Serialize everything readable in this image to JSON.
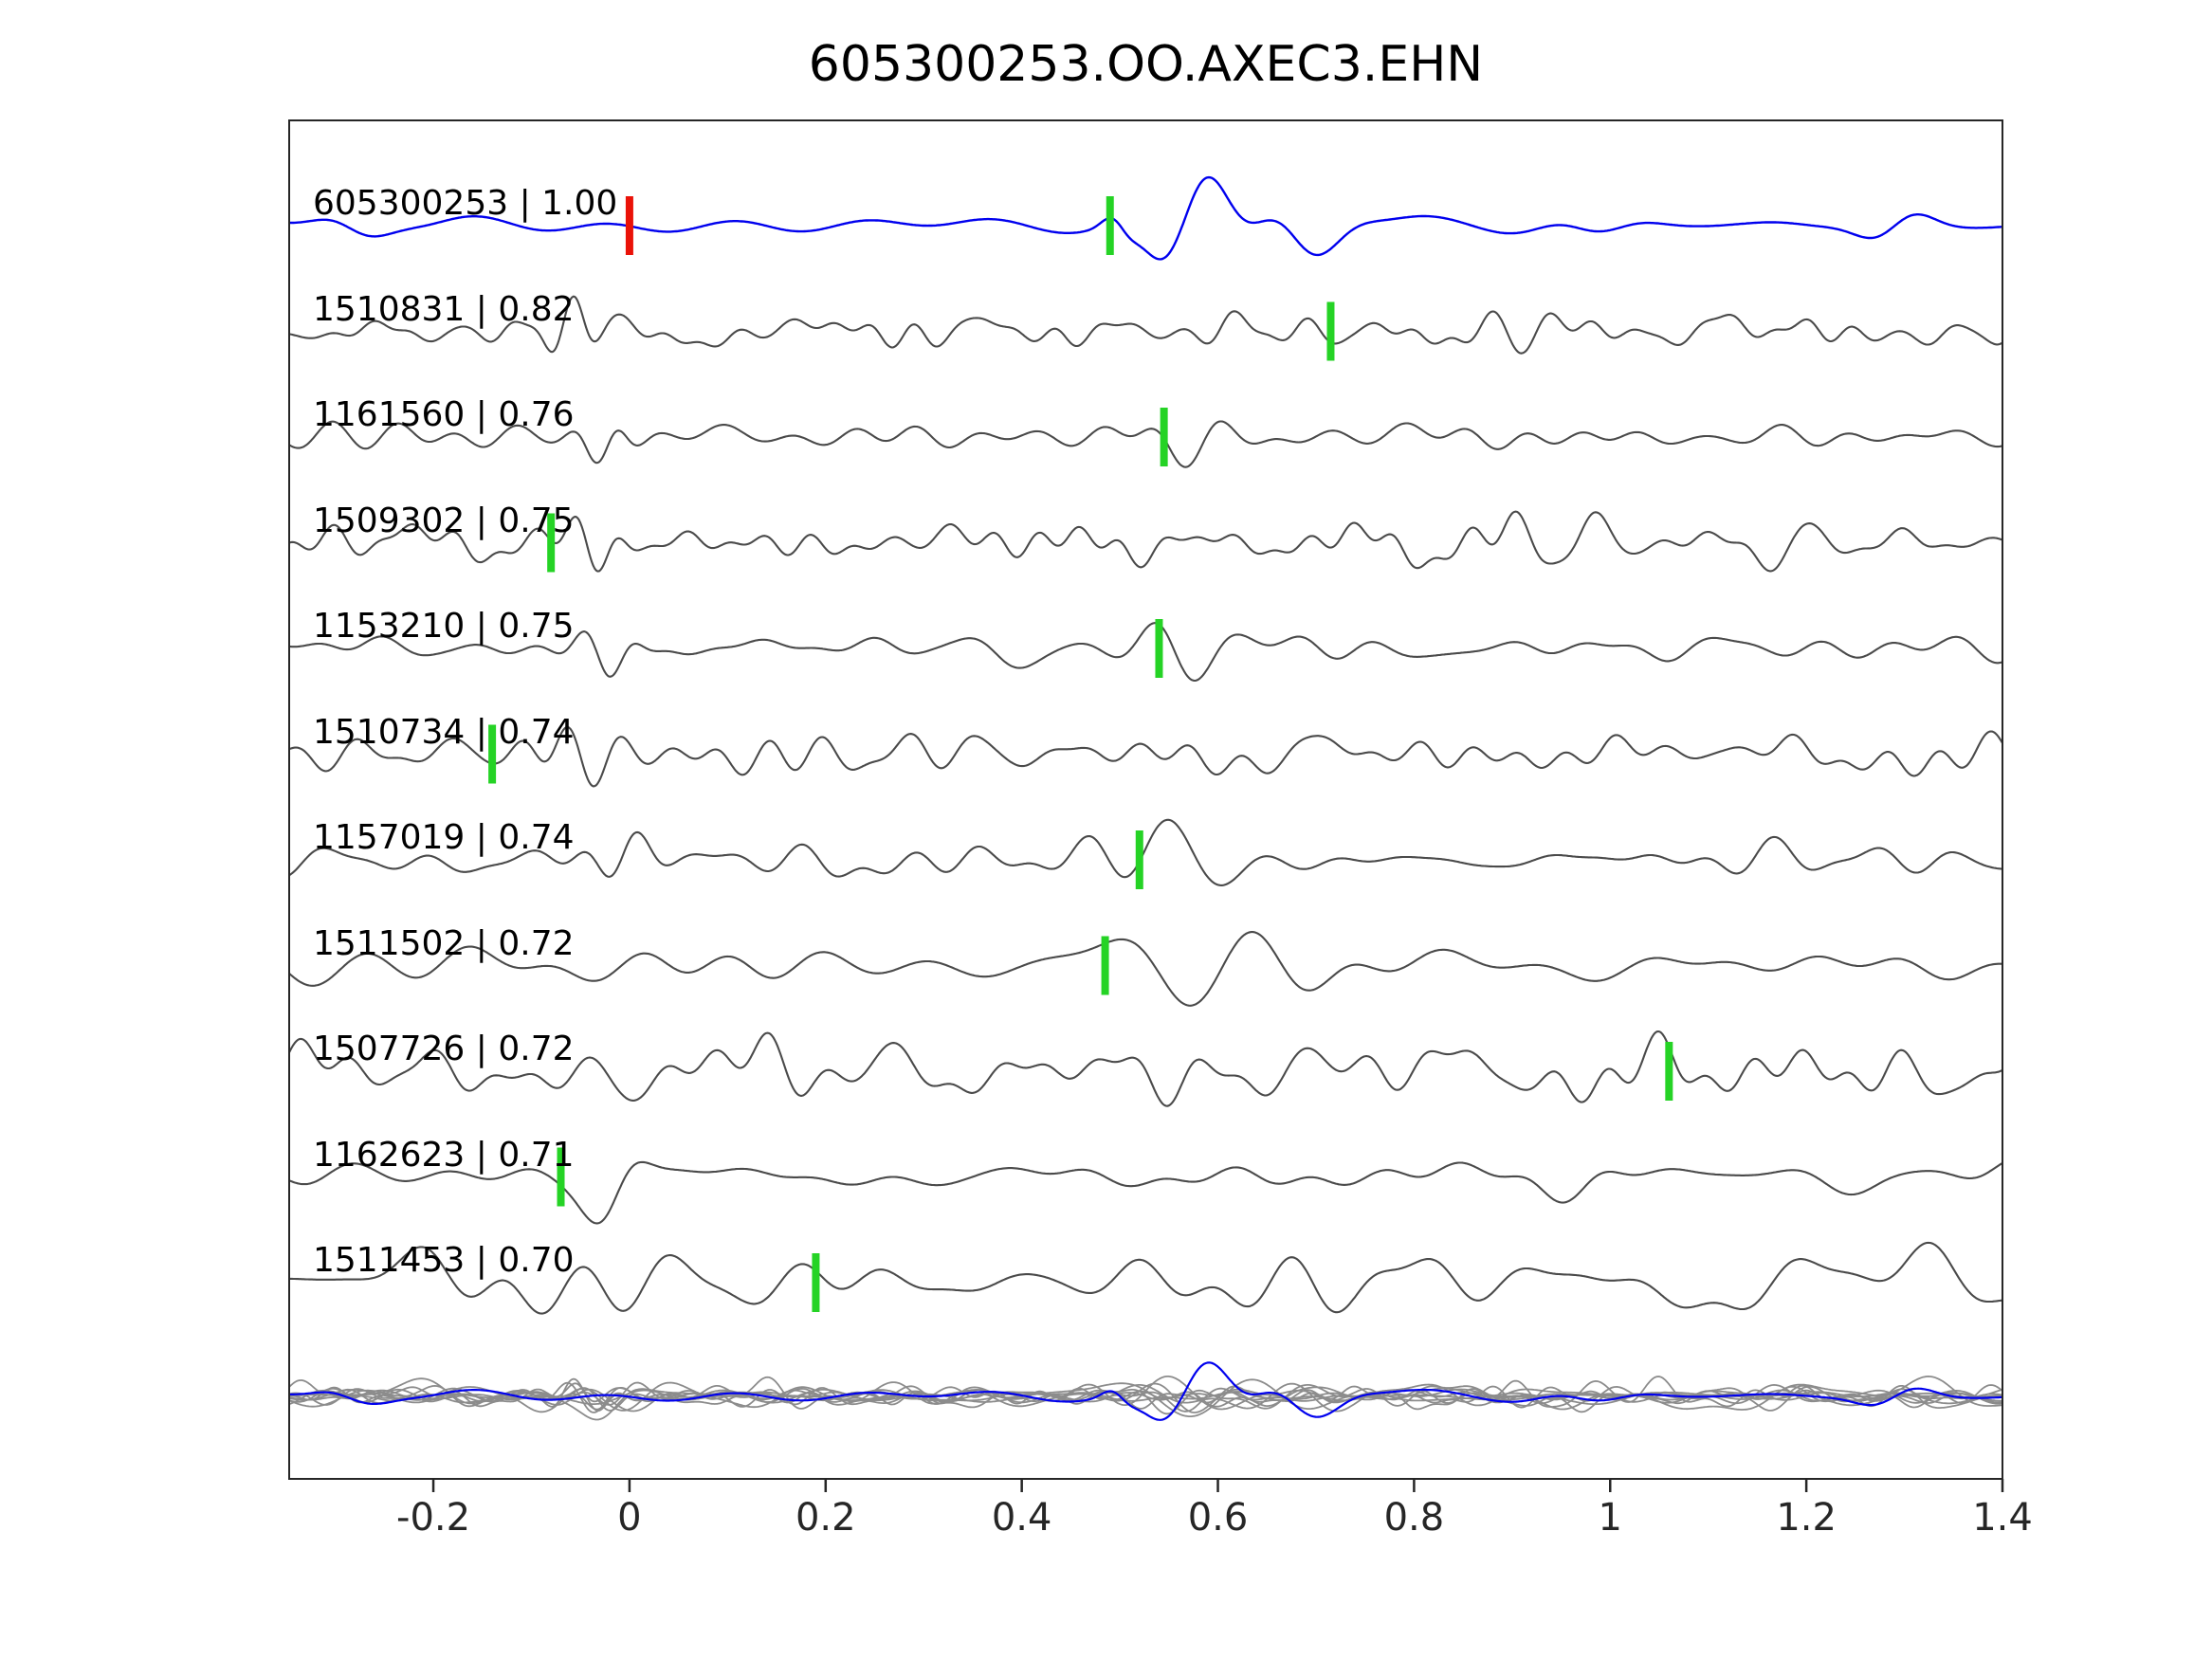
{
  "title": "605300253.OO.AXEC3.EHN",
  "chart_data": {
    "type": "line",
    "title": "605300253.OO.AXEC3.EHN",
    "xlabel": "",
    "ylabel": "",
    "xlim": [
      -0.347,
      1.4
    ],
    "x_ticks": [
      -0.2,
      0,
      0.2,
      0.4,
      0.6,
      0.8,
      1,
      1.2,
      1.4
    ],
    "x_tick_labels": [
      "-0.2",
      "0",
      "0.2",
      "0.4",
      "0.6",
      "0.8",
      "1",
      "1.2",
      "1.4"
    ],
    "grid": false,
    "legend": false,
    "colors": {
      "template": "#0000ee",
      "trace": "#4a4a4a",
      "overlay_trace": "#8c8c8c",
      "axis": "#262626",
      "pick_green": "#25d325",
      "pick_red": "#ea1208"
    },
    "traces": [
      {
        "id": "605300253",
        "correlation": 1.0,
        "label": "605300253 | 1.00",
        "template": true,
        "seed": 11,
        "noise": {
          "amp": 4,
          "fmax": 7
        },
        "events": [
          {
            "x": -0.28,
            "amp": 8,
            "f": 9,
            "w": 0.05
          },
          {
            "x": 0.5,
            "amp": 12,
            "f": 14,
            "w": 0.02
          },
          {
            "x": 0.575,
            "amp": 58,
            "f": 8,
            "w": 0.055
          },
          {
            "x": 0.69,
            "amp": 30,
            "f": 7,
            "w": 0.05
          },
          {
            "x": 0.98,
            "amp": 8,
            "f": 8,
            "w": 0.06
          },
          {
            "x": 1.29,
            "amp": 12,
            "f": 9,
            "w": 0.05
          }
        ],
        "picks": [
          {
            "x": 0.0,
            "color": "red"
          },
          {
            "x": 0.49,
            "color": "green"
          }
        ]
      },
      {
        "id": "1510831",
        "correlation": 0.82,
        "label": "1510831 | 0.82",
        "template": false,
        "seed": 22,
        "noise": {
          "amp": 8,
          "fmax": 26
        },
        "events": [
          {
            "x": -0.065,
            "amp": 34,
            "f": 22,
            "w": 0.035
          },
          {
            "x": 0.72,
            "amp": 20,
            "f": 14,
            "w": 0.05
          },
          {
            "x": 0.88,
            "amp": 12,
            "f": 18,
            "w": 0.12
          }
        ],
        "picks": [
          {
            "x": 0.715,
            "color": "green"
          }
        ]
      },
      {
        "id": "1161560",
        "correlation": 0.76,
        "label": "1161560 | 0.76",
        "template": false,
        "seed": 33,
        "noise": {
          "amp": 6,
          "fmax": 18
        },
        "events": [
          {
            "x": -0.025,
            "amp": 26,
            "f": 18,
            "w": 0.03
          },
          {
            "x": 0.56,
            "amp": 38,
            "f": 11,
            "w": 0.05
          },
          {
            "x": 0.75,
            "amp": 12,
            "f": 12,
            "w": 0.08
          }
        ],
        "picks": [
          {
            "x": 0.545,
            "color": "green"
          }
        ]
      },
      {
        "id": "1509302",
        "correlation": 0.75,
        "label": "1509302 | 0.75",
        "template": false,
        "seed": 44,
        "noise": {
          "amp": 9,
          "fmax": 24
        },
        "events": [
          {
            "x": -0.04,
            "amp": 28,
            "f": 20,
            "w": 0.035
          },
          {
            "x": 0.95,
            "amp": 16,
            "f": 14,
            "w": 0.1
          },
          {
            "x": 1.2,
            "amp": 14,
            "f": 12,
            "w": 0.08
          }
        ],
        "picks": [
          {
            "x": -0.08,
            "color": "green"
          }
        ]
      },
      {
        "id": "1153210",
        "correlation": 0.75,
        "label": "1153210 | 0.75",
        "template": false,
        "seed": 55,
        "noise": {
          "amp": 7,
          "fmax": 18
        },
        "events": [
          {
            "x": -0.02,
            "amp": 32,
            "f": 16,
            "w": 0.035
          },
          {
            "x": 0.565,
            "amp": 40,
            "f": 10,
            "w": 0.05
          }
        ],
        "picks": [
          {
            "x": 0.54,
            "color": "green"
          }
        ]
      },
      {
        "id": "1510734",
        "correlation": 0.74,
        "label": "1510734 | 0.74",
        "template": false,
        "seed": 66,
        "noise": {
          "amp": 9,
          "fmax": 20
        },
        "events": [
          {
            "x": -0.06,
            "amp": 30,
            "f": 18,
            "w": 0.05
          },
          {
            "x": 0.675,
            "amp": 36,
            "f": 9,
            "w": 0.04
          },
          {
            "x": 0.85,
            "amp": 16,
            "f": 14,
            "w": 0.12
          }
        ],
        "picks": [
          {
            "x": -0.14,
            "color": "green"
          }
        ]
      },
      {
        "id": "1157019",
        "correlation": 0.74,
        "label": "1157019 | 0.74",
        "template": false,
        "seed": 77,
        "noise": {
          "amp": 8,
          "fmax": 18
        },
        "events": [
          {
            "x": -0.015,
            "amp": 38,
            "f": 14,
            "w": 0.04
          },
          {
            "x": 0.575,
            "amp": 40,
            "f": 9,
            "w": 0.06
          }
        ],
        "picks": [
          {
            "x": 0.52,
            "color": "green"
          }
        ]
      },
      {
        "id": "1511502",
        "correlation": 0.72,
        "label": "1511502 | 0.72",
        "template": false,
        "seed": 88,
        "noise": {
          "amp": 9,
          "fmax": 11
        },
        "events": [
          {
            "x": 0.1,
            "amp": 12,
            "f": 10,
            "w": 0.12
          },
          {
            "x": 0.545,
            "amp": 38,
            "f": 6,
            "w": 0.07
          },
          {
            "x": 0.66,
            "amp": 34,
            "f": 5.5,
            "w": 0.07
          }
        ],
        "picks": [
          {
            "x": 0.485,
            "color": "green"
          }
        ]
      },
      {
        "id": "1507726",
        "correlation": 0.72,
        "label": "1507726 | 0.72",
        "template": false,
        "seed": 99,
        "noise": {
          "amp": 14,
          "fmax": 20
        },
        "events": [
          {
            "x": 1.09,
            "amp": 28,
            "f": 8,
            "w": 0.06
          }
        ],
        "picks": [
          {
            "x": 1.06,
            "color": "green"
          }
        ]
      },
      {
        "id": "1162623",
        "correlation": 0.71,
        "label": "1162623 | 0.71",
        "template": false,
        "seed": 110,
        "noise": {
          "amp": 7,
          "fmax": 13
        },
        "events": [
          {
            "x": -0.02,
            "amp": 40,
            "f": 8,
            "w": 0.035
          },
          {
            "x": 0.95,
            "amp": 14,
            "f": 10,
            "w": 0.06
          },
          {
            "x": 1.15,
            "amp": 10,
            "f": 10,
            "w": 0.08
          }
        ],
        "picks": [
          {
            "x": -0.07,
            "color": "green"
          }
        ]
      },
      {
        "id": "1511453",
        "correlation": 0.7,
        "label": "1511453 | 0.70",
        "template": false,
        "seed": 121,
        "noise": {
          "amp": 15,
          "fmax": 13
        },
        "events": [
          {
            "x": 0.47,
            "amp": 30,
            "f": 7,
            "w": 0.08
          },
          {
            "x": 0.75,
            "amp": 18,
            "f": 8,
            "w": 0.2
          }
        ],
        "picks": [
          {
            "x": 0.19,
            "color": "green"
          }
        ]
      }
    ],
    "overlay": {
      "present": true,
      "scale": 0.5,
      "template_scale": 0.7
    }
  }
}
